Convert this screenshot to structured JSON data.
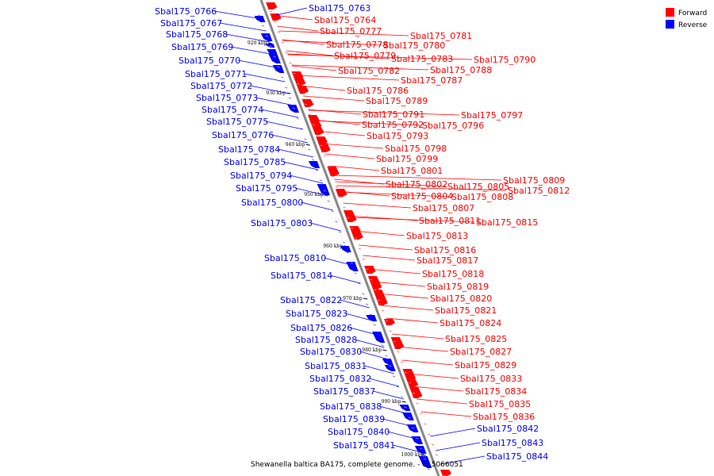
{
  "legend": {
    "forward": {
      "label": "Forward",
      "color": "#ff0000"
    },
    "reverse": {
      "label": "Reverse",
      "color": "#0000ff"
    }
  },
  "caption": "Shewanella baltica BA175, complete genome. - 0..5066051",
  "axis_ticks": [
    "920 kbp",
    "930 kbp",
    "940 kbp",
    "950 kbp",
    "960 kbp",
    "970 kbp",
    "980 kbp",
    "990 kbp",
    "1000 kbp"
  ],
  "reverse_genes": [
    "Sbal175_0766",
    "Sbal175_0767",
    "Sbal175_0768",
    "Sbal175_0769",
    "Sbal175_0770",
    "Sbal175_0771",
    "Sbal175_0772",
    "Sbal175_0773",
    "Sbal175_0774",
    "Sbal175_0775",
    "Sbal175_0776",
    "Sbal175_0784",
    "Sbal175_0785",
    "Sbal175_0794",
    "Sbal175_0795",
    "Sbal175_0800",
    "Sbal175_0803",
    "Sbal175_0810",
    "Sbal175_0814",
    "Sbal175_0822",
    "Sbal175_0823",
    "Sbal175_0826",
    "Sbal175_0828",
    "Sbal175_0830",
    "Sbal175_0831",
    "Sbal175_0832",
    "Sbal175_0837",
    "Sbal175_0838",
    "Sbal175_0839",
    "Sbal175_0840",
    "Sbal175_0841",
    "Sbal175_0763",
    "Sbal175_0842",
    "Sbal175_0843",
    "Sbal175_0844"
  ],
  "forward_genes": [
    "Sbal175_0764",
    "Sbal175_0777",
    "Sbal175_0778",
    "Sbal175_0779",
    "Sbal175_0780",
    "Sbal175_0781",
    "Sbal175_0782",
    "Sbal175_0783",
    "Sbal175_0786",
    "Sbal175_0787",
    "Sbal175_0788",
    "Sbal175_0789",
    "Sbal175_0790",
    "Sbal175_0791",
    "Sbal175_0792",
    "Sbal175_0793",
    "Sbal175_0796",
    "Sbal175_0797",
    "Sbal175_0798",
    "Sbal175_0799",
    "Sbal175_0801",
    "Sbal175_0802",
    "Sbal175_0804",
    "Sbal175_0805",
    "Sbal175_0807",
    "Sbal175_0808",
    "Sbal175_0809",
    "Sbal175_0811",
    "Sbal175_0812",
    "Sbal175_0813",
    "Sbal175_0815",
    "Sbal175_0816",
    "Sbal175_0817",
    "Sbal175_0818",
    "Sbal175_0819",
    "Sbal175_0820",
    "Sbal175_0821",
    "Sbal175_0824",
    "Sbal175_0825",
    "Sbal175_0827",
    "Sbal175_0829",
    "Sbal175_0833",
    "Sbal175_0834",
    "Sbal175_0835",
    "Sbal175_0836"
  ]
}
